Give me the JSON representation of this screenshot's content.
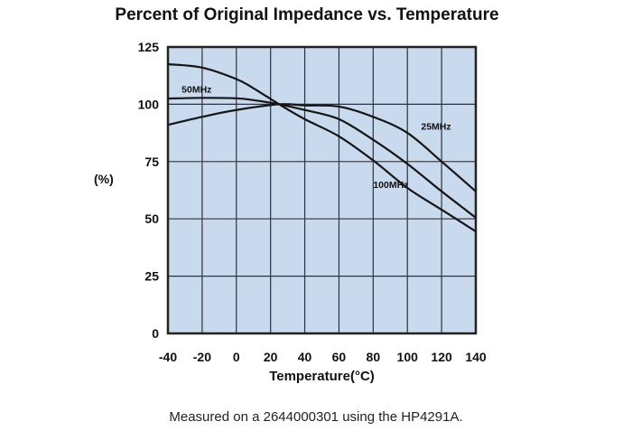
{
  "chart_data": {
    "type": "line",
    "title": "Percent of Original Impedance vs. Temperature",
    "xlabel": "Temperature(°C)",
    "ylabel": "(%)",
    "xlim": [
      -40,
      140
    ],
    "ylim": [
      0,
      125
    ],
    "xticks": [
      -40,
      -20,
      0,
      20,
      40,
      60,
      80,
      100,
      120,
      140
    ],
    "yticks": [
      0,
      25,
      50,
      75,
      100,
      125
    ],
    "grid": true,
    "background": "#c9d9ee",
    "series": [
      {
        "name": "25MHz",
        "x": [
          -40,
          -20,
          0,
          25,
          40,
          60,
          80,
          100,
          120,
          140
        ],
        "y": [
          91,
          94.5,
          97.5,
          100,
          99.5,
          99,
          94.5,
          87.5,
          75,
          62
        ],
        "label_at": [
          108,
          89
        ]
      },
      {
        "name": "50MHz",
        "x": [
          -40,
          -20,
          0,
          10,
          25,
          40,
          60,
          80,
          100,
          120,
          140
        ],
        "y": [
          102.5,
          102.8,
          102.6,
          101.8,
          100,
          97.5,
          93.5,
          84.5,
          74,
          62,
          50.5
        ],
        "label_at": [
          -32,
          105
        ]
      },
      {
        "name": "100MHz",
        "x": [
          -40,
          -20,
          0,
          10,
          25,
          40,
          60,
          80,
          100,
          120,
          140
        ],
        "y": [
          117.5,
          116,
          111,
          107,
          100,
          93.5,
          86,
          75.5,
          63.5,
          54,
          44.5
        ],
        "label_at": [
          80,
          63.5
        ]
      }
    ]
  },
  "footnote": "Measured on a 2644000301 using the HP4291A."
}
